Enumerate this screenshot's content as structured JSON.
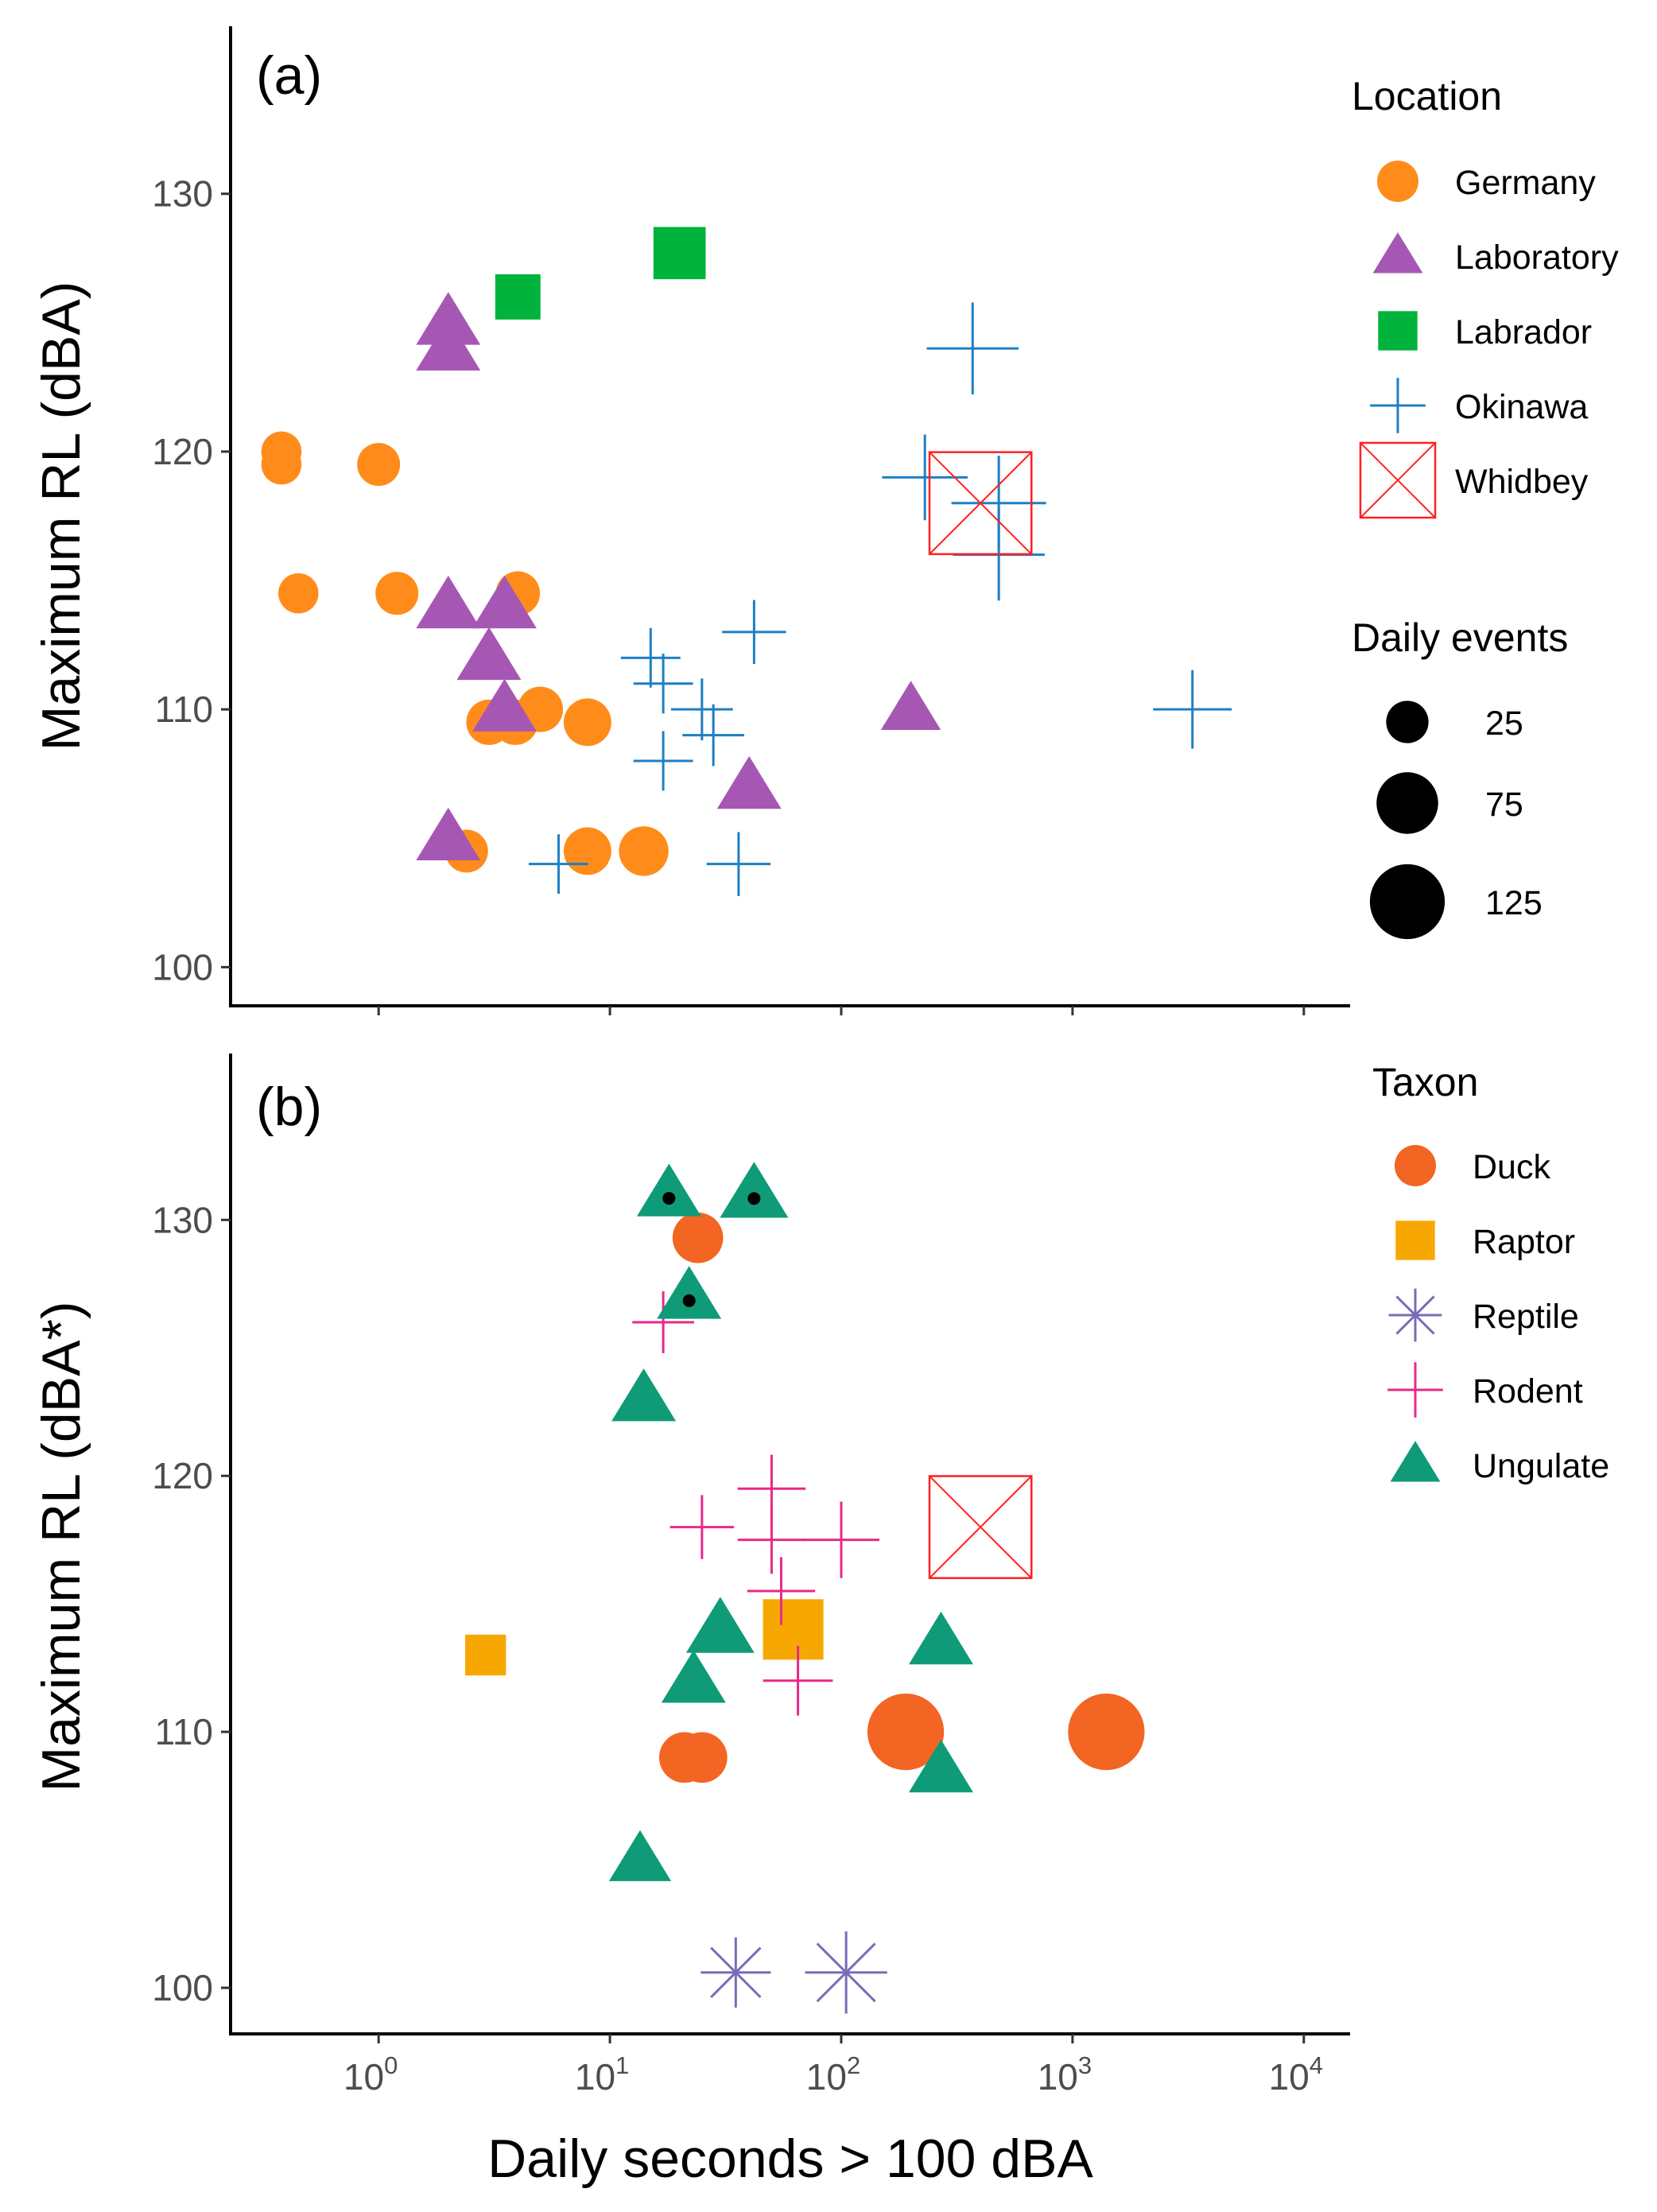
{
  "chart_data": [
    {
      "type": "scatter",
      "panel_label": "(a)",
      "xlabel": "Daily seconds > 100 dBA",
      "ylabel": "Maximum RL (dBA)",
      "x_scale": "log10",
      "xlim_log10": [
        -0.64,
        4.2
      ],
      "ylim": [
        98.5,
        136.5
      ],
      "yticks": [
        100,
        110,
        120,
        130
      ],
      "ytick_labels": [
        "100",
        "110",
        "120",
        "130"
      ],
      "legend_color": {
        "title": "Location",
        "entries": [
          {
            "label": "Germany",
            "shape": "circle",
            "color": "#ff8c1a"
          },
          {
            "label": "Laboratory",
            "shape": "triangle",
            "color": "#a657b4"
          },
          {
            "label": "Labrador",
            "shape": "square",
            "color": "#00b33c"
          },
          {
            "label": "Okinawa",
            "shape": "plus",
            "color": "#1f7fc4"
          },
          {
            "label": "Whidbey",
            "shape": "boxx",
            "color": "#ff2020"
          }
        ]
      },
      "legend_size": {
        "title": "Daily events",
        "entries": [
          {
            "label": "25",
            "events": 25
          },
          {
            "label": "75",
            "events": 75
          },
          {
            "label": "125",
            "events": 125
          }
        ]
      },
      "series": [
        {
          "name": "Germany",
          "shape": "circle",
          "color": "#ff8c1a",
          "points": [
            {
              "x": 0.38,
              "y": 120,
              "events": 6
            },
            {
              "x": 0.38,
              "y": 119.5,
              "events": 6
            },
            {
              "x": 1.0,
              "y": 119.5,
              "events": 8
            },
            {
              "x": 0.45,
              "y": 114.5,
              "events": 6
            },
            {
              "x": 1.2,
              "y": 114.5,
              "events": 8
            },
            {
              "x": 4.0,
              "y": 114.5,
              "events": 9
            },
            {
              "x": 5.0,
              "y": 110,
              "events": 10
            },
            {
              "x": 3.0,
              "y": 109.5,
              "events": 10
            },
            {
              "x": 3.9,
              "y": 109.5,
              "events": 10
            },
            {
              "x": 8.0,
              "y": 109.5,
              "events": 12
            },
            {
              "x": 2.4,
              "y": 104.5,
              "events": 8
            },
            {
              "x": 8.0,
              "y": 104.5,
              "events": 12
            },
            {
              "x": 14.0,
              "y": 104.5,
              "events": 14
            }
          ]
        },
        {
          "name": "Laboratory",
          "shape": "triangle",
          "color": "#a657b4",
          "points": [
            {
              "x": 2.0,
              "y": 125,
              "events": 18
            },
            {
              "x": 2.0,
              "y": 124,
              "events": 18
            },
            {
              "x": 2.0,
              "y": 114,
              "events": 18
            },
            {
              "x": 3.5,
              "y": 114,
              "events": 18
            },
            {
              "x": 3.0,
              "y": 112,
              "events": 18
            },
            {
              "x": 3.5,
              "y": 110,
              "events": 18
            },
            {
              "x": 2.0,
              "y": 105,
              "events": 18
            },
            {
              "x": 40,
              "y": 107,
              "events": 18
            },
            {
              "x": 200,
              "y": 110,
              "events": 14
            }
          ]
        },
        {
          "name": "Labrador",
          "shape": "square",
          "color": "#00b33c",
          "points": [
            {
              "x": 4.0,
              "y": 126,
              "events": 12
            },
            {
              "x": 20,
              "y": 127.7,
              "events": 20
            }
          ]
        },
        {
          "name": "Okinawa",
          "shape": "plus",
          "color": "#1f7fc4",
          "points": [
            {
              "x": 15,
              "y": 112,
              "events": 14
            },
            {
              "x": 17,
              "y": 111,
              "events": 14
            },
            {
              "x": 17,
              "y": 108,
              "events": 14
            },
            {
              "x": 25,
              "y": 110,
              "events": 16
            },
            {
              "x": 28,
              "y": 109,
              "events": 16
            },
            {
              "x": 42,
              "y": 113,
              "events": 18
            },
            {
              "x": 6.0,
              "y": 104,
              "events": 14
            },
            {
              "x": 36,
              "y": 104,
              "events": 18
            },
            {
              "x": 230,
              "y": 119,
              "events": 45
            },
            {
              "x": 370,
              "y": 124,
              "events": 55
            },
            {
              "x": 480,
              "y": 118,
              "events": 60
            },
            {
              "x": 480,
              "y": 116,
              "events": 55
            },
            {
              "x": 3300,
              "y": 110,
              "events": 35
            }
          ]
        },
        {
          "name": "Whidbey",
          "shape": "boxx",
          "color": "#ff2020",
          "points": [
            {
              "x": 400,
              "y": 118,
              "events": 125
            }
          ]
        }
      ]
    },
    {
      "type": "scatter",
      "panel_label": "(b)",
      "xlabel": "Daily seconds > 100 dBA",
      "ylabel": "Maximum RL (dBA*)",
      "x_scale": "log10",
      "xlim_log10": [
        -0.64,
        4.2
      ],
      "ylim": [
        98.2,
        136.5
      ],
      "xticks_log10": [
        0,
        1,
        2,
        3,
        4
      ],
      "xtick_labels": [
        {
          "base": "10",
          "exp": "0"
        },
        {
          "base": "10",
          "exp": "1"
        },
        {
          "base": "10",
          "exp": "2"
        },
        {
          "base": "10",
          "exp": "3"
        },
        {
          "base": "10",
          "exp": "4"
        }
      ],
      "yticks": [
        100,
        110,
        120,
        130
      ],
      "ytick_labels": [
        "100",
        "110",
        "120",
        "130"
      ],
      "legend_color": {
        "title": "Taxon",
        "entries": [
          {
            "label": "Duck",
            "shape": "circle",
            "color": "#f26522"
          },
          {
            "label": "Raptor",
            "shape": "square",
            "color": "#f7a800"
          },
          {
            "label": "Reptile",
            "shape": "asterisk",
            "color": "#7b6bb8"
          },
          {
            "label": "Rodent",
            "shape": "plus",
            "color": "#e7298a"
          },
          {
            "label": "Ungulate",
            "shape": "triangle",
            "color": "#0f9b77"
          }
        ]
      },
      "series": [
        {
          "name": "Duck",
          "shape": "circle",
          "color": "#f26522",
          "points": [
            {
              "x": 24,
              "y": 129.3,
              "events": 15
            },
            {
              "x": 21,
              "y": 109,
              "events": 15
            },
            {
              "x": 25,
              "y": 109,
              "events": 15
            },
            {
              "x": 190,
              "y": 110,
              "events": 55
            },
            {
              "x": 1400,
              "y": 110,
              "events": 55
            }
          ]
        },
        {
          "name": "Raptor",
          "shape": "square",
          "color": "#f7a800",
          "points": [
            {
              "x": 2.9,
              "y": 113,
              "events": 8
            },
            {
              "x": 62,
              "y": 114,
              "events": 32
            }
          ]
        },
        {
          "name": "Reptile",
          "shape": "asterisk",
          "color": "#7b6bb8",
          "points": [
            {
              "x": 35,
              "y": 100.6,
              "events": 28
            },
            {
              "x": 105,
              "y": 100.6,
              "events": 45
            }
          ]
        },
        {
          "name": "Rodent",
          "shape": "plus",
          "color": "#e7298a",
          "points": [
            {
              "x": 17,
              "y": 126,
              "events": 16
            },
            {
              "x": 25,
              "y": 118,
              "events": 18
            },
            {
              "x": 50,
              "y": 119.5,
              "events": 22
            },
            {
              "x": 50,
              "y": 117.5,
              "events": 22
            },
            {
              "x": 100,
              "y": 117.5,
              "events": 32
            },
            {
              "x": 55,
              "y": 115.5,
              "events": 22
            },
            {
              "x": 65,
              "y": 112,
              "events": 24
            }
          ]
        },
        {
          "name": "Ungulate",
          "shape": "triangle",
          "color": "#0f9b77",
          "points": [
            {
              "x": 18,
              "y": 131,
              "events": 18,
              "dot": true
            },
            {
              "x": 42,
              "y": 131,
              "events": 22,
              "dot": true
            },
            {
              "x": 22,
              "y": 127,
              "events": 18,
              "dot": true
            },
            {
              "x": 14,
              "y": 123,
              "events": 18
            },
            {
              "x": 30,
              "y": 114,
              "events": 22
            },
            {
              "x": 23,
              "y": 112,
              "events": 18
            },
            {
              "x": 270,
              "y": 113.5,
              "events": 18
            },
            {
              "x": 270,
              "y": 108.5,
              "events": 18
            },
            {
              "x": 13.5,
              "y": 105,
              "events": 16
            }
          ]
        },
        {
          "name": "Whidbey",
          "shape": "boxx",
          "color": "#ff2020",
          "points": [
            {
              "x": 400,
              "y": 118,
              "events": 125
            }
          ]
        }
      ]
    }
  ]
}
